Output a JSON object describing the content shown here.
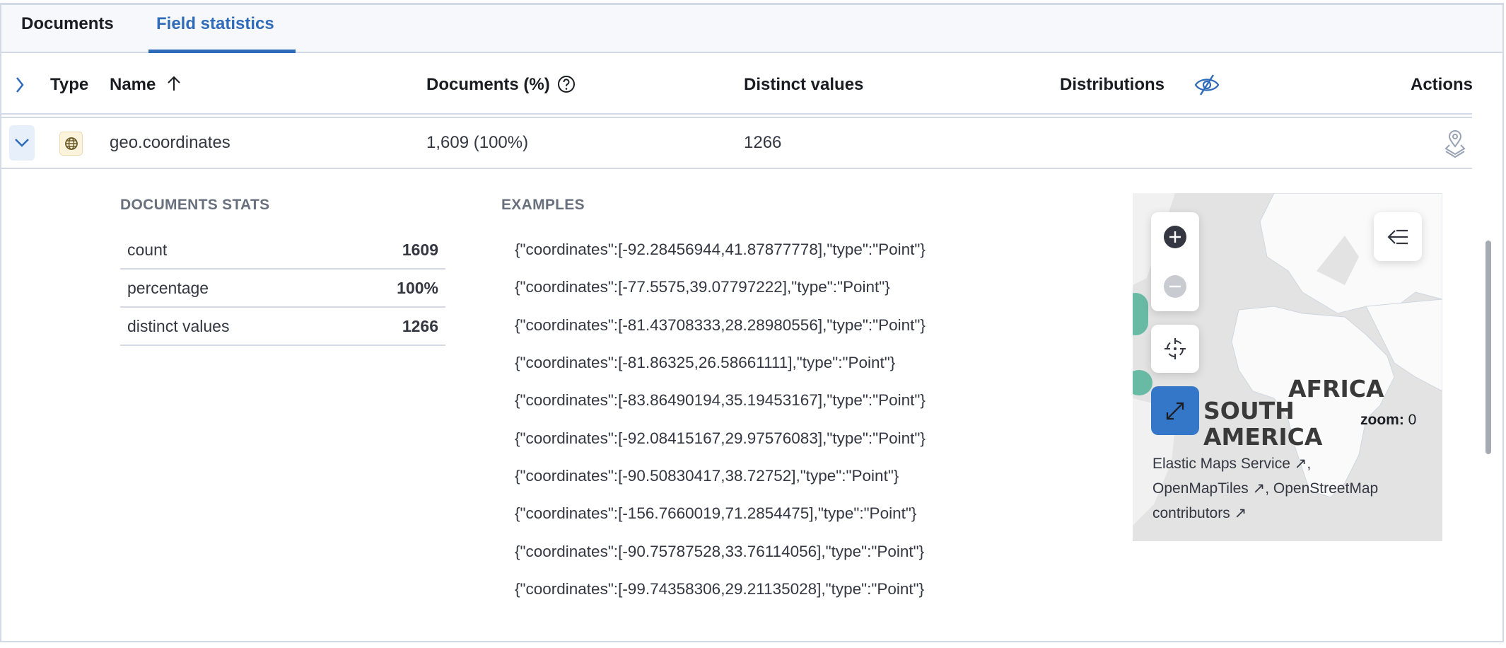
{
  "tabs": [
    {
      "label": "Documents",
      "active": false
    },
    {
      "label": "Field statistics",
      "active": true
    }
  ],
  "table": {
    "headers": {
      "type": "Type",
      "name": "Name",
      "name_sort": "ascending",
      "documents": "Documents (%)",
      "distinct": "Distinct values",
      "distributions": "Distributions",
      "actions": "Actions"
    },
    "rows": [
      {
        "type_icon": "geo-point-icon",
        "name": "geo.coordinates",
        "documents": "1,609 (100%)",
        "distinct": "1266",
        "expanded": true
      }
    ]
  },
  "details": {
    "stats_title": "DOCUMENTS STATS",
    "stats": [
      {
        "label": "count",
        "value": "1609"
      },
      {
        "label": "percentage",
        "value": "100%"
      },
      {
        "label": "distinct values",
        "value": "1266"
      }
    ],
    "examples_title": "EXAMPLES",
    "examples": [
      "{\"coordinates\":[-92.28456944,41.87877778],\"type\":\"Point\"}",
      "{\"coordinates\":[-77.5575,39.07797222],\"type\":\"Point\"}",
      "{\"coordinates\":[-81.43708333,28.28980556],\"type\":\"Point\"}",
      "{\"coordinates\":[-81.86325,26.58661111],\"type\":\"Point\"}",
      "{\"coordinates\":[-83.86490194,35.19453167],\"type\":\"Point\"}",
      "{\"coordinates\":[-92.08415167,29.97576083],\"type\":\"Point\"}",
      "{\"coordinates\":[-90.50830417,38.72752],\"type\":\"Point\"}",
      "{\"coordinates\":[-156.7660019,71.2854475],\"type\":\"Point\"}",
      "{\"coordinates\":[-90.75787528,33.76114056],\"type\":\"Point\"}",
      "{\"coordinates\":[-99.74358306,29.21135028],\"type\":\"Point\"}"
    ],
    "map": {
      "labels": {
        "africa": "AFRICA",
        "south_america_1": "SOUTH",
        "south_america_2": "AMERICA"
      },
      "zoom_label": "zoom:",
      "zoom_value": "0",
      "attribution": {
        "ems": "Elastic Maps Service",
        "omt": "OpenMapTiles",
        "osm": "OpenStreetMap",
        "osm2": "contributors"
      },
      "point_color": "#54b399"
    }
  },
  "colors": {
    "accent": "#2f6bb8",
    "border": "#d3dae6"
  }
}
